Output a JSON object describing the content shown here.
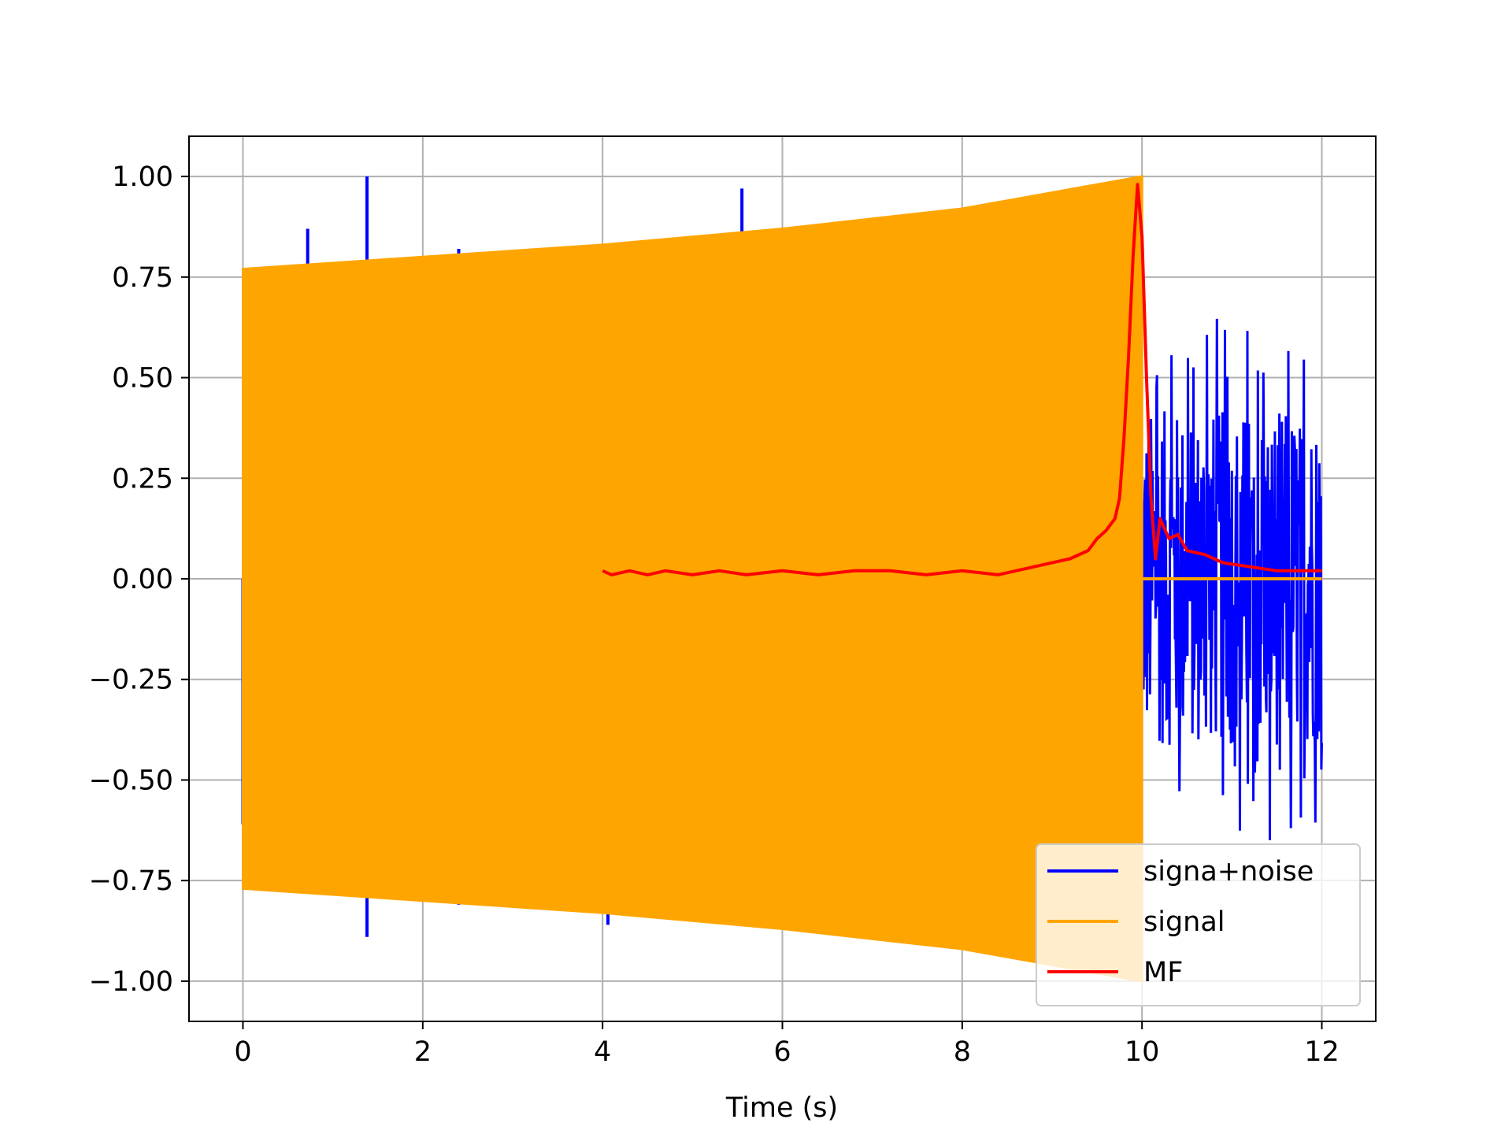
{
  "chart_data": {
    "type": "line",
    "title": "",
    "xlabel": "Time (s)",
    "ylabel": "",
    "xlim": [
      -0.6,
      12.6
    ],
    "ylim": [
      -1.1,
      1.1
    ],
    "xticks": [
      0,
      2,
      4,
      6,
      8,
      10,
      12
    ],
    "xtick_labels": [
      "0",
      "2",
      "4",
      "6",
      "8",
      "10",
      "12"
    ],
    "yticks": [
      1.0,
      0.75,
      0.5,
      0.25,
      0.0,
      -0.25,
      -0.5,
      -0.75,
      -1.0
    ],
    "ytick_labels": [
      "1.00",
      "0.75",
      "0.50",
      "0.25",
      "0.00",
      "−0.25",
      "−0.50",
      "−0.75",
      "−1.00"
    ],
    "grid": true,
    "legend_position": "lower-right",
    "series": [
      {
        "name": "signa+noise",
        "color": "#0000ff",
        "description_points": {
          "spikes": [
            {
              "x": 0.72,
              "y": 0.87
            },
            {
              "x": 1.38,
              "y": 1.0
            },
            {
              "x": 1.38,
              "y": -0.89
            },
            {
              "x": 2.4,
              "y": 0.82
            },
            {
              "x": 2.4,
              "y": -0.81
            },
            {
              "x": 4.06,
              "y": -0.86
            },
            {
              "x": 5.55,
              "y": 0.97
            },
            {
              "x": 0.0,
              "y": -0.61
            }
          ],
          "noise_region": {
            "x_start": 10.0,
            "x_end": 12.0,
            "y_min": -0.65,
            "y_max": 0.68
          }
        }
      },
      {
        "name": "signal",
        "color": "#ffa500",
        "envelope": {
          "x": [
            0,
            2,
            4,
            6,
            8,
            10
          ],
          "y_upper": [
            0.77,
            0.8,
            0.83,
            0.87,
            0.92,
            1.0
          ],
          "y_lower": [
            -0.77,
            -0.8,
            -0.83,
            -0.87,
            -0.92,
            -1.0
          ]
        },
        "after_x": 10.0,
        "after_value": 0.0,
        "end_x": 12.0
      },
      {
        "name": "MF",
        "color": "#ff0000",
        "x": [
          4.0,
          4.1,
          4.3,
          4.5,
          4.7,
          5.0,
          5.3,
          5.6,
          6.0,
          6.4,
          6.8,
          7.2,
          7.6,
          8.0,
          8.4,
          8.8,
          9.0,
          9.2,
          9.4,
          9.5,
          9.6,
          9.7,
          9.75,
          9.8,
          9.85,
          9.9,
          9.95,
          10.0,
          10.05,
          10.1,
          10.15,
          10.2,
          10.3,
          10.4,
          10.5,
          10.7,
          10.9,
          11.2,
          11.5,
          11.8,
          12.0
        ],
        "y": [
          0.02,
          0.01,
          0.02,
          0.01,
          0.02,
          0.01,
          0.02,
          0.01,
          0.02,
          0.01,
          0.02,
          0.02,
          0.01,
          0.02,
          0.01,
          0.03,
          0.04,
          0.05,
          0.07,
          0.1,
          0.12,
          0.15,
          0.2,
          0.35,
          0.55,
          0.8,
          0.98,
          0.85,
          0.5,
          0.2,
          0.05,
          0.15,
          0.1,
          0.11,
          0.07,
          0.06,
          0.04,
          0.03,
          0.02,
          0.02,
          0.02
        ]
      }
    ]
  }
}
